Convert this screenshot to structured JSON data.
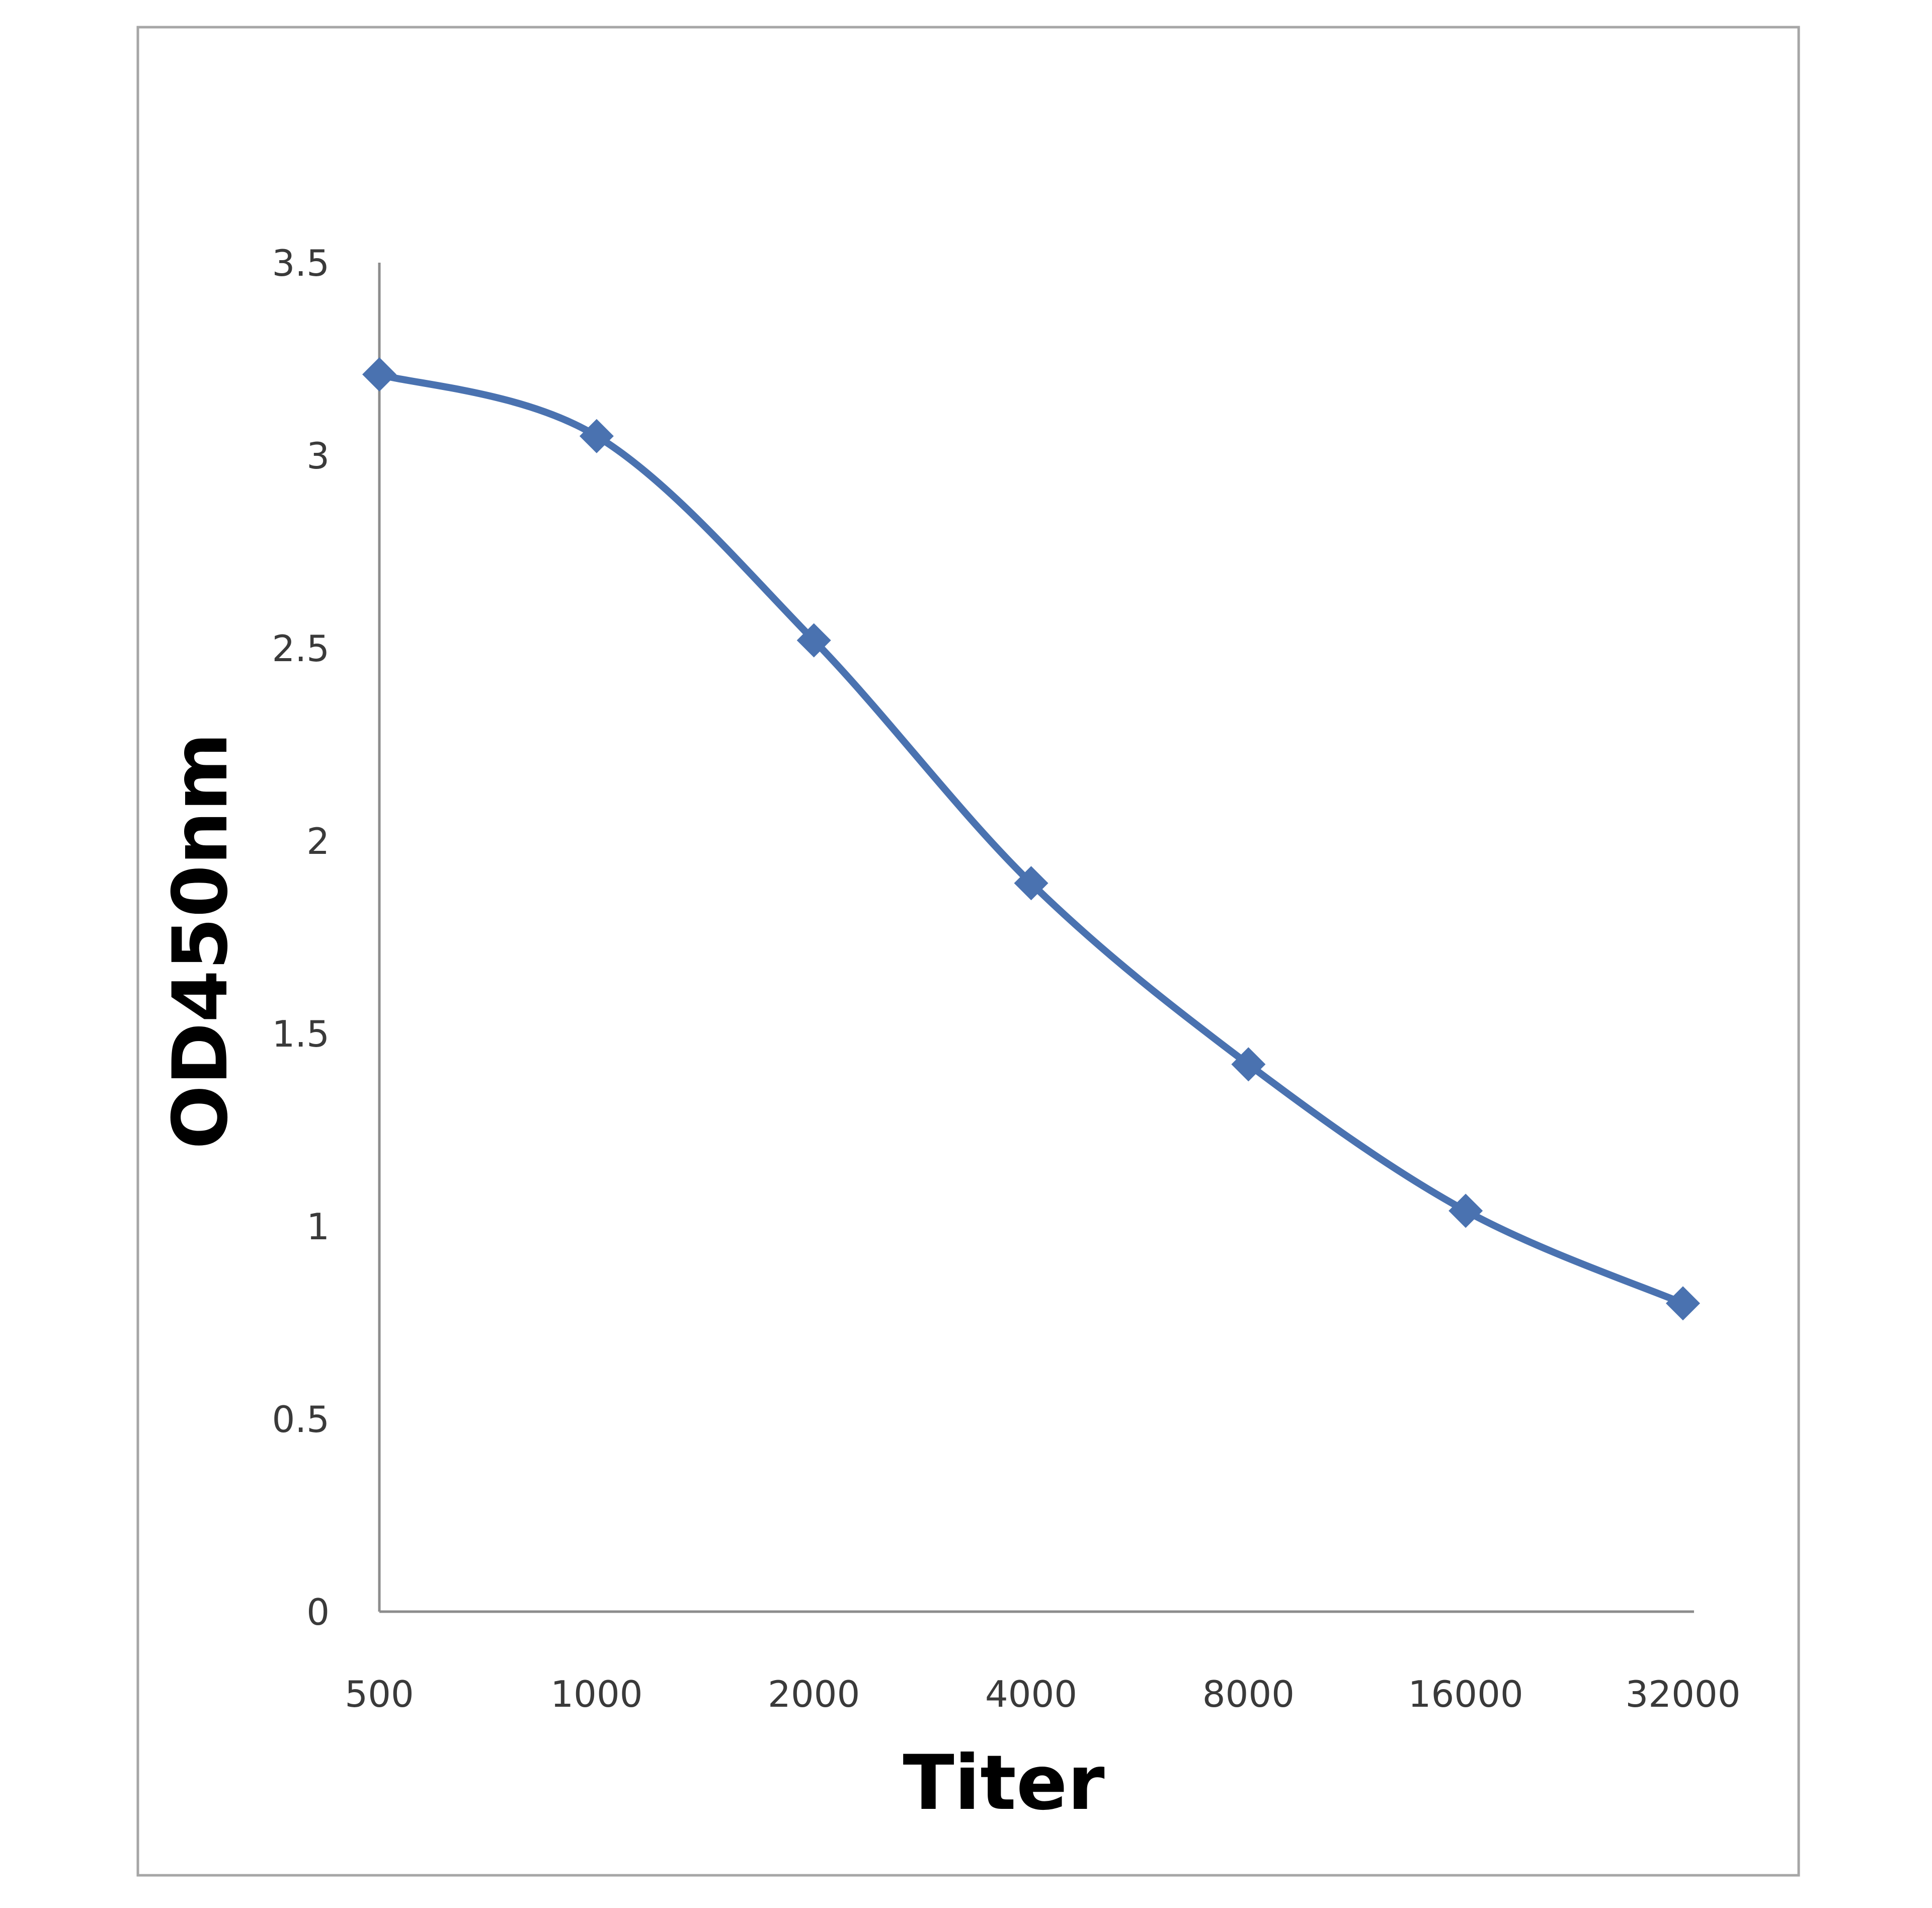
{
  "chart_data": {
    "type": "line",
    "title": "",
    "xlabel": "Titer",
    "ylabel": "OD450nm",
    "categories": [
      "500",
      "1000",
      "2000",
      "4000",
      "8000",
      "16000",
      "32000"
    ],
    "series": [
      {
        "name": "OD450nm",
        "values": [
          3.21,
          3.05,
          2.52,
          1.89,
          1.42,
          1.04,
          0.8
        ],
        "color": "#4a72b0",
        "marker": "diamond",
        "smooth": true
      }
    ],
    "ylim": [
      0,
      3.5
    ],
    "yticks": [
      "0",
      "0.5",
      "1",
      "1.5",
      "2",
      "2.5",
      "3",
      "3.5"
    ],
    "grid": false,
    "legend": "none"
  },
  "colors": {
    "series": "#4a72b0",
    "axis": "#8c8c8c",
    "frame": "#a6a6a6"
  }
}
